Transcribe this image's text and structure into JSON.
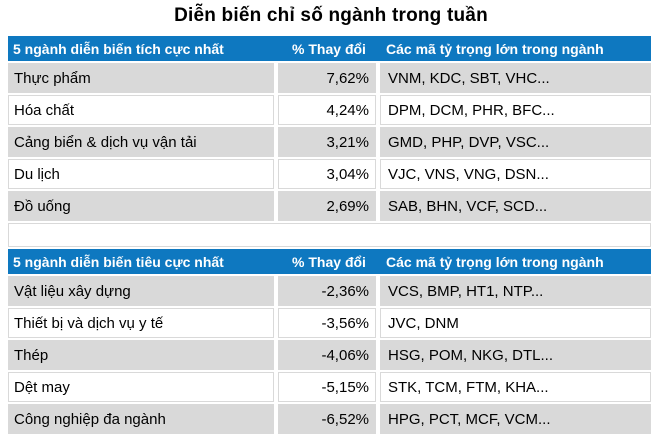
{
  "title": "Diễn biến chỉ số ngành trong tuần",
  "colors": {
    "header_bg": "#0E78C0",
    "header_text": "#FFFFFF",
    "row_alt_bg": "#D9D9D9",
    "row_bg": "#FFFFFF",
    "border": "#D9D9D9",
    "text": "#000000"
  },
  "tables": [
    {
      "id": "positive-sectors",
      "headers": [
        "5 ngành diễn biến tích cực nhất",
        "% Thay đổi",
        "Các mã tỷ trọng lớn trong ngành"
      ],
      "rows": [
        {
          "sector": "Thực phẩm",
          "change": "7,62%",
          "tickers": "VNM, KDC, SBT, VHC..."
        },
        {
          "sector": "Hóa chất",
          "change": "4,24%",
          "tickers": "DPM, DCM, PHR, BFC..."
        },
        {
          "sector": "Cảng biển & dịch vụ vận tải",
          "change": "3,21%",
          "tickers": "GMD, PHP, DVP, VSC..."
        },
        {
          "sector": "Du lịch",
          "change": "3,04%",
          "tickers": "VJC, VNS, VNG, DSN..."
        },
        {
          "sector": "Đồ uống",
          "change": "2,69%",
          "tickers": "SAB, BHN, VCF, SCD..."
        }
      ]
    },
    {
      "id": "negative-sectors",
      "headers": [
        "5 ngành diễn biến tiêu cực nhất",
        "% Thay đổi",
        "Các mã tỷ trọng lớn trong ngành"
      ],
      "rows": [
        {
          "sector": "Vật liệu xây dựng",
          "change": "-2,36%",
          "tickers": "VCS, BMP, HT1, NTP..."
        },
        {
          "sector": "Thiết bị và dịch vụ y tế",
          "change": "-3,56%",
          "tickers": "JVC, DNM"
        },
        {
          "sector": "Thép",
          "change": "-4,06%",
          "tickers": "HSG, POM, NKG, DTL..."
        },
        {
          "sector": "Dệt may",
          "change": "-5,15%",
          "tickers": "STK, TCM, FTM, KHA..."
        },
        {
          "sector": "Công nghiệp đa ngành",
          "change": "-6,52%",
          "tickers": "HPG, PCT, MCF, VCM..."
        }
      ]
    }
  ],
  "chart_data": [
    {
      "type": "table",
      "title": "5 ngành diễn biến tích cực nhất",
      "columns": [
        "Ngành",
        "% Thay đổi",
        "Các mã tỷ trọng lớn trong ngành"
      ],
      "rows": [
        [
          "Thực phẩm",
          7.62,
          "VNM, KDC, SBT, VHC..."
        ],
        [
          "Hóa chất",
          4.24,
          "DPM, DCM, PHR, BFC..."
        ],
        [
          "Cảng biển & dịch vụ vận tải",
          3.21,
          "GMD, PHP, DVP, VSC..."
        ],
        [
          "Du lịch",
          3.04,
          "VJC, VNS, VNG, DSN..."
        ],
        [
          "Đồ uống",
          2.69,
          "SAB, BHN, VCF, SCD..."
        ]
      ]
    },
    {
      "type": "table",
      "title": "5 ngành diễn biến tiêu cực nhất",
      "columns": [
        "Ngành",
        "% Thay đổi",
        "Các mã tỷ trọng lớn trong ngành"
      ],
      "rows": [
        [
          "Vật liệu xây dựng",
          -2.36,
          "VCS, BMP, HT1, NTP..."
        ],
        [
          "Thiết bị và dịch vụ y tế",
          -3.56,
          "JVC, DNM"
        ],
        [
          "Thép",
          -4.06,
          "HSG, POM, NKG, DTL..."
        ],
        [
          "Dệt may",
          -5.15,
          "STK, TCM, FTM, KHA..."
        ],
        [
          "Công nghiệp đa ngành",
          -6.52,
          "HPG, PCT, MCF, VCM..."
        ]
      ]
    }
  ]
}
